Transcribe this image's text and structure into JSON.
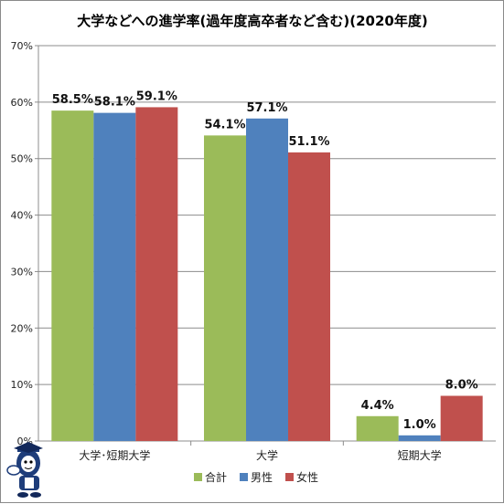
{
  "chart_data": {
    "type": "bar",
    "title": "大学などへの進学率(過年度高卒者など含む)(2020年度)",
    "categories": [
      "大学･短期大学",
      "大学",
      "短期大学"
    ],
    "series": [
      {
        "name": "合計",
        "values": [
          58.5,
          54.1,
          4.4
        ],
        "labels": [
          "58.5%",
          "54.1%",
          "4.4%"
        ],
        "color": "#9bbb59"
      },
      {
        "name": "男性",
        "values": [
          58.1,
          57.1,
          1.0
        ],
        "labels": [
          "58.1%",
          "57.1%",
          "1.0%"
        ],
        "color": "#4f81bd"
      },
      {
        "name": "女性",
        "values": [
          59.1,
          51.1,
          8.0
        ],
        "labels": [
          "59.1%",
          "51.1%",
          "8.0%"
        ],
        "color": "#c0504d"
      }
    ],
    "ylim": [
      0,
      70
    ],
    "yticks": [
      "0%",
      "10%",
      "20%",
      "30%",
      "40%",
      "50%",
      "60%",
      "70%"
    ],
    "grid": true,
    "legend_position": "bottom",
    "xlabel": "",
    "ylabel": ""
  },
  "mascot": {
    "icon": "mascot-character-icon"
  }
}
